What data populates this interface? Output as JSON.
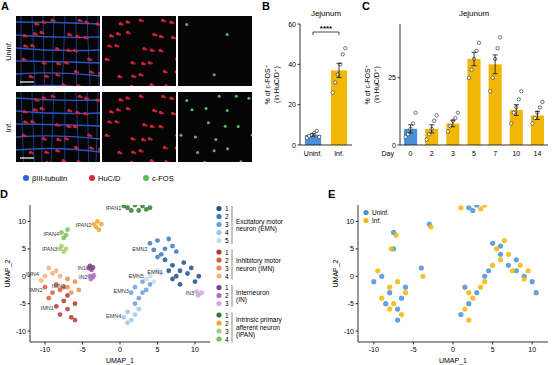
{
  "image_panel": {
    "panel": "A",
    "rows": [
      "Uninf.",
      "Inf."
    ],
    "channels": [
      {
        "name": "βIII-tubulin",
        "color": "#2b5fd9"
      },
      {
        "name": "HuC/D",
        "color": "#d9263a"
      },
      {
        "name": "c-FOS",
        "color": "#5cb85c"
      }
    ]
  },
  "chart_data": [
    {
      "panel": "B",
      "type": "bar",
      "title": "Jejunum",
      "ylabel": [
        "% of c-FOS⁺",
        "(in HuC/D⁺)"
      ],
      "categories": [
        "Uninf.",
        "Inf."
      ],
      "values": [
        5,
        37
      ],
      "errors": [
        0.6,
        3.5
      ],
      "points": [
        [
          3.5,
          4.5,
          5,
          6,
          7,
          4
        ],
        [
          26,
          31,
          35,
          40,
          45,
          48
        ]
      ],
      "colors": [
        "#4a90d9",
        "#f2b705"
      ],
      "ylim": [
        0,
        60
      ],
      "yticks": [
        0,
        20,
        40,
        60
      ],
      "annotations": [
        "****"
      ]
    },
    {
      "panel": "C",
      "type": "bar",
      "title": "Jejunum",
      "ylabel": [
        "% of c-FOS⁺",
        "(in HuC/D⁺)"
      ],
      "xlabel": "Day",
      "categories": [
        "0",
        "2",
        "3",
        "5",
        "7",
        "10",
        "14"
      ],
      "values": [
        6,
        6,
        8,
        32,
        30,
        13,
        11
      ],
      "errors": [
        1.5,
        1.5,
        1.2,
        2.5,
        3.5,
        2,
        1.5
      ],
      "points": [
        [
          3,
          4,
          6,
          8,
          12
        ],
        [
          2,
          4,
          6,
          9,
          11
        ],
        [
          5,
          7,
          9,
          10,
          12
        ],
        [
          25,
          28,
          32,
          35,
          38
        ],
        [
          20,
          25,
          32,
          36,
          40
        ],
        [
          8,
          12,
          14,
          17,
          20
        ],
        [
          8,
          10,
          12,
          14,
          16
        ]
      ],
      "colors": [
        "#4a90d9",
        "#f2b705",
        "#f2b705",
        "#f2b705",
        "#f2b705",
        "#f2b705",
        "#f2b705"
      ],
      "ylim": [
        0,
        45
      ],
      "yticks": [
        0,
        25
      ]
    },
    {
      "panel": "D",
      "type": "scatter",
      "xlabel": "UMAP_1",
      "ylabel": "UMAP_2",
      "xlim": [
        -12,
        12
      ],
      "ylim": [
        -12,
        13
      ],
      "xticks": [
        -10,
        -5,
        0,
        5,
        10
      ],
      "yticks": [
        -10,
        -5,
        0,
        5,
        10
      ],
      "groups": [
        {
          "label": [
            "Excitatory motor",
            "neuron (EMN)"
          ],
          "series": [
            {
              "name": "1",
              "label": "EMN1",
              "color": "#1f4e8c",
              "x": [
                6,
                7,
                8,
                9,
                10,
                7.5,
                8.5,
                6.5,
                9.5,
                7,
                8,
                10.5
              ],
              "y": [
                3,
                2,
                1,
                0.5,
                -1,
                0,
                2.5,
                1,
                1.5,
                -0.5,
                -1.5,
                0
              ]
            },
            {
              "name": "2",
              "label": "EMN2",
              "color": "#3b78c0",
              "x": [
                4,
                5,
                6,
                7,
                5.5,
                6.5,
                4.5,
                5,
                7.5,
                6
              ],
              "y": [
                6,
                6.5,
                5,
                5.5,
                4,
                6.8,
                4.8,
                3.5,
                4.5,
                3
              ]
            },
            {
              "name": "3",
              "label": "EMN3",
              "color": "#6b9fd8",
              "x": [
                2,
                3,
                2.5,
                3.5,
                1.5,
                4,
                3,
                2
              ],
              "y": [
                -2,
                -3,
                -4,
                -2.5,
                -3,
                -1.5,
                -1,
                -5
              ]
            },
            {
              "name": "4",
              "label": "EMN4",
              "color": "#9ec3e8",
              "x": [
                1,
                2,
                1.5,
                2.5,
                0.5,
                1
              ],
              "y": [
                -6.5,
                -7,
                -8,
                -6,
                -7.5,
                -8.5
              ]
            },
            {
              "name": "5",
              "label": "EMN5",
              "color": "#c4d9ee",
              "x": [
                4,
                5,
                4.5,
                3.5,
                5.5
              ],
              "y": [
                0,
                1,
                -1,
                -0.5,
                0.5
              ]
            }
          ]
        },
        {
          "label": [
            "Inhibitory motor",
            "neuron (IMN)"
          ],
          "series": [
            {
              "name": "1",
              "label": "IMN1",
              "color": "#b03a2e",
              "x": [
                -6,
                -7,
                -8,
                -6.5,
                -7.5,
                -6,
                -7,
                -8.5
              ],
              "y": [
                -5,
                -6,
                -7,
                -7.5,
                -4.5,
                -8,
                -3.5,
                -5.5
              ]
            },
            {
              "name": "2",
              "label": "IMN2",
              "color": "#dc5a3a",
              "x": [
                -9,
                -8,
                -9.5,
                -8.5,
                -7.5,
                -10
              ],
              "y": [
                -3,
                -2.5,
                -4,
                -1.5,
                -2,
                -2
              ]
            },
            {
              "name": "3",
              "label": "IMN3",
              "color": "#ec8a4c",
              "x": [
                -6,
                -7,
                -5.5,
                -6.5,
                -7
              ],
              "y": [
                -1,
                -2,
                -2.5,
                -3,
                -0.5
              ]
            },
            {
              "name": "4",
              "label": "IMN4",
              "color": "#f2b27a",
              "x": [
                -9,
                -10,
                -8.5,
                -9.5,
                -8,
                -10.5
              ],
              "y": [
                0.5,
                0,
                1,
                1.5,
                0,
                -0.8
              ]
            }
          ]
        },
        {
          "label": [
            "Interneuron",
            "(IN)"
          ],
          "series": [
            {
              "name": "1",
              "label": "IN1",
              "color": "#7b3f8c",
              "x": [
                -4.2,
                -3.8,
                -4,
                -3.6
              ],
              "y": [
                1.5,
                1.2,
                1.9,
                1.6
              ]
            },
            {
              "name": "2",
              "label": "IN2",
              "color": "#b06fc0",
              "x": [
                -4,
                -3.6,
                -3.9,
                -3.5
              ],
              "y": [
                0,
                -0.2,
                -0.5,
                0.2
              ]
            },
            {
              "name": "3",
              "label": "IN3",
              "color": "#d6a8df",
              "x": [
                10.2,
                10.6,
                10.9,
                10.4
              ],
              "y": [
                -2.8,
                -3.2,
                -3,
                -3.5
              ]
            }
          ]
        },
        {
          "label": [
            "Intrinsic primary",
            "afferent neuron",
            "(IPAN)"
          ],
          "series": [
            {
              "name": "1",
              "label": "IPAN1",
              "color": "#2e7d32",
              "x": [
                1,
                2,
                3,
                4,
                1.5,
                2.5,
                3.5,
                0.5
              ],
              "y": [
                12.5,
                13,
                12.8,
                12.5,
                12,
                12,
                12.2,
                12.8
              ]
            },
            {
              "name": "2",
              "label": "IPAN2",
              "color": "#f0a830",
              "x": [
                -3,
                -2.5,
                -3.2,
                -2.8,
                -3.5
              ],
              "y": [
                10,
                9.5,
                9,
                8.5,
                9.5
              ]
            },
            {
              "name": "3",
              "label": "IPAN3",
              "color": "#a5cf6b",
              "x": [
                -7.8,
                -7.2,
                -7.5,
                -8
              ],
              "y": [
                5.5,
                5,
                4.5,
                5
              ]
            },
            {
              "name": "4",
              "label": "IPAN4",
              "color": "#7cbf5a",
              "x": [
                -7.8,
                -7.2,
                -7.5,
                -7
              ],
              "y": [
                8,
                7.5,
                7,
                8.5
              ]
            }
          ]
        }
      ]
    },
    {
      "panel": "E",
      "type": "scatter",
      "xlabel": "UMAP_1",
      "ylabel": "UMAP_2",
      "xlim": [
        -12,
        12
      ],
      "ylim": [
        -12,
        13
      ],
      "xticks": [
        -10,
        -5,
        0,
        5,
        10
      ],
      "yticks": [
        -10,
        -5,
        0,
        5,
        10
      ],
      "legend": "upper left",
      "series": [
        {
          "name": "Uninf.",
          "color": "#4a90d9",
          "x": [
            7,
            9,
            5,
            6,
            3,
            2,
            1,
            4,
            8,
            10,
            -7,
            -8,
            -9,
            -6,
            -10,
            -7,
            -4,
            2,
            3,
            -3,
            -7.5,
            -7.5,
            1.5,
            6,
            10.5,
            -8.5,
            -6.5,
            2.5,
            4.5,
            8
          ],
          "y": [
            2,
            0,
            6,
            4,
            -3,
            -5,
            -7,
            0,
            3,
            -1,
            -6,
            -3,
            0,
            -2,
            -1,
            -8,
            1.5,
            12.5,
            13,
            9.5,
            5,
            8,
            -2,
            5.5,
            -3,
            -5,
            -4,
            12,
            1,
            1
          ]
        },
        {
          "name": "Inf.",
          "color": "#f2b705",
          "x": [
            7.5,
            8.5,
            5.5,
            6.5,
            2.5,
            1.5,
            3.5,
            4,
            9.5,
            6,
            -7.5,
            -8,
            -9.5,
            -6,
            -9,
            -6.5,
            -3.8,
            1,
            3.5,
            -2.8,
            -7.8,
            -7.2,
            2,
            7,
            -8,
            -7,
            2,
            4,
            9,
            5
          ],
          "y": [
            1,
            2,
            5,
            6.5,
            -4,
            -6,
            -2,
            -1,
            1,
            3,
            -5,
            -2,
            1,
            -3,
            -4,
            -7,
            0,
            12.5,
            12.3,
            9,
            5,
            7.5,
            -8,
            4,
            -6,
            -1,
            -3,
            13,
            -0.5,
            2
          ]
        }
      ]
    }
  ]
}
